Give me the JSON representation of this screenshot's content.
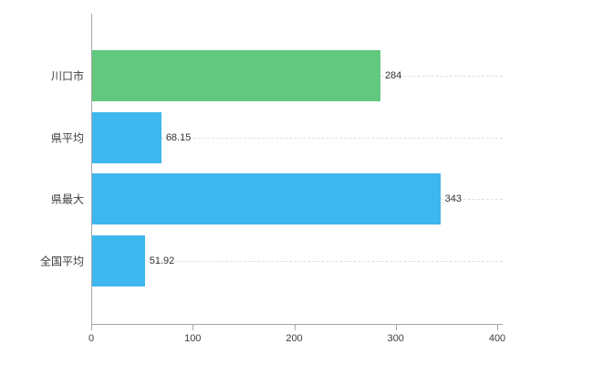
{
  "chart_data": {
    "type": "bar",
    "orientation": "horizontal",
    "title": "",
    "xlabel": "",
    "ylabel": "",
    "categories": [
      "川口市",
      "県平均",
      "県最大",
      "全国平均"
    ],
    "values": [
      284,
      68.15,
      343,
      51.92
    ],
    "value_labels": [
      "284",
      "68.15",
      "343",
      "51.92"
    ],
    "bar_colors": [
      "#61c87e",
      "#3eb7ee",
      "#3eb7ee",
      "#3eb7ee"
    ],
    "xlim": [
      0,
      400
    ],
    "x_ticks": [
      0,
      100,
      200,
      300,
      400
    ],
    "grid": "faint dashed horizontal lines at bar centers",
    "legend": null,
    "axis_color": "#a6a6a6",
    "label_color": "#3c3c3c"
  }
}
